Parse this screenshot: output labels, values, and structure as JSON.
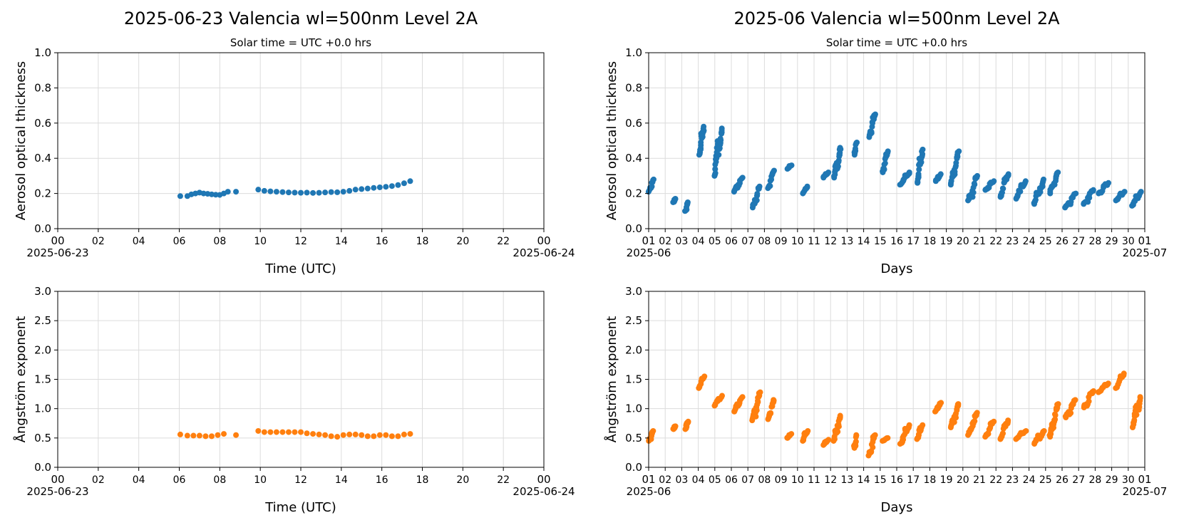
{
  "colors": {
    "aot": "#1f77b4",
    "angstrom": "#ff7f0e",
    "grid": "#dcdcdc"
  },
  "titles": {
    "left": "2025-06-23  Valencia  wl=500nm  Level 2A",
    "right": "2025-06  Valencia  wl=500nm  Level 2A"
  },
  "chart_data": [
    {
      "id": "daily-aot",
      "type": "scatter",
      "title": "2025-06-23  Valencia  wl=500nm  Level 2A",
      "subtitle": "Solar time = UTC +0.0 hrs",
      "ylabel": "Aerosol optical thickness",
      "xlabel": "Time (UTC)",
      "xlim": [
        "2025-06-23 00:00",
        "2025-06-24 00:00"
      ],
      "ylim": [
        0,
        1.0
      ],
      "yticks": [
        "0.0",
        "0.2",
        "0.4",
        "0.6",
        "0.8",
        "1.0"
      ],
      "xticks": [
        "00",
        "02",
        "04",
        "06",
        "08",
        "10",
        "12",
        "14",
        "16",
        "18",
        "20",
        "22",
        "00"
      ],
      "xdate_labels": [
        "2025-06-23",
        "2025-06-24"
      ],
      "grid": true,
      "series": [
        {
          "x_hours": [
            6.05,
            6.4,
            6.6,
            6.8,
            7.0,
            7.2,
            7.4,
            7.6,
            7.8,
            8.0,
            8.2,
            8.4,
            8.8,
            9.9,
            10.2,
            10.5,
            10.8,
            11.1,
            11.4,
            11.7,
            12.0,
            12.3,
            12.6,
            12.9,
            13.2,
            13.5,
            13.8,
            14.1,
            14.4,
            14.7,
            15.0,
            15.3,
            15.6,
            15.9,
            16.2,
            16.5,
            16.8,
            17.1,
            17.4
          ],
          "y": [
            0.185,
            0.185,
            0.195,
            0.2,
            0.205,
            0.2,
            0.198,
            0.195,
            0.193,
            0.192,
            0.2,
            0.21,
            0.21,
            0.222,
            0.215,
            0.212,
            0.21,
            0.208,
            0.206,
            0.205,
            0.204,
            0.205,
            0.203,
            0.204,
            0.206,
            0.208,
            0.207,
            0.21,
            0.215,
            0.222,
            0.225,
            0.228,
            0.232,
            0.235,
            0.238,
            0.242,
            0.248,
            0.258,
            0.27
          ]
        }
      ]
    },
    {
      "id": "daily-angstrom",
      "type": "scatter",
      "ylabel": "Ångström exponent",
      "xlabel": "Time (UTC)",
      "xlim": [
        "2025-06-23 00:00",
        "2025-06-24 00:00"
      ],
      "ylim": [
        0,
        3.0
      ],
      "yticks": [
        "0.0",
        "0.5",
        "1.0",
        "1.5",
        "2.0",
        "2.5",
        "3.0"
      ],
      "xticks": [
        "00",
        "02",
        "04",
        "06",
        "08",
        "10",
        "12",
        "14",
        "16",
        "18",
        "20",
        "22",
        "00"
      ],
      "xdate_labels": [
        "2025-06-23",
        "2025-06-24"
      ],
      "grid": true,
      "series": [
        {
          "x_hours": [
            6.05,
            6.4,
            6.7,
            7.0,
            7.3,
            7.6,
            7.9,
            8.2,
            8.8,
            9.9,
            10.2,
            10.5,
            10.8,
            11.1,
            11.4,
            11.7,
            12.0,
            12.3,
            12.6,
            12.9,
            13.2,
            13.5,
            13.8,
            14.1,
            14.4,
            14.7,
            15.0,
            15.3,
            15.6,
            15.9,
            16.2,
            16.5,
            16.8,
            17.1,
            17.4
          ],
          "y": [
            0.56,
            0.54,
            0.54,
            0.54,
            0.53,
            0.53,
            0.55,
            0.57,
            0.55,
            0.62,
            0.6,
            0.6,
            0.6,
            0.6,
            0.6,
            0.6,
            0.6,
            0.58,
            0.57,
            0.56,
            0.55,
            0.53,
            0.52,
            0.55,
            0.56,
            0.56,
            0.55,
            0.53,
            0.53,
            0.55,
            0.55,
            0.53,
            0.53,
            0.56,
            0.57
          ]
        }
      ]
    },
    {
      "id": "monthly-aot",
      "type": "scatter",
      "title": "2025-06  Valencia  wl=500nm  Level 2A",
      "subtitle": "Solar time = UTC +0.0 hrs",
      "ylabel": "Aerosol optical thickness",
      "xlabel": "Days",
      "xlim": [
        "2025-06-01",
        "2025-07-01"
      ],
      "ylim": [
        0,
        1.0
      ],
      "yticks": [
        "0.0",
        "0.2",
        "0.4",
        "0.6",
        "0.8",
        "1.0"
      ],
      "xticks": [
        "01",
        "02",
        "03",
        "04",
        "05",
        "06",
        "07",
        "08",
        "09",
        "10",
        "11",
        "12",
        "13",
        "14",
        "15",
        "16",
        "17",
        "18",
        "19",
        "20",
        "21",
        "22",
        "23",
        "24",
        "25",
        "26",
        "27",
        "28",
        "29",
        "30",
        "01"
      ],
      "xdate_labels": [
        "2025-06",
        "2025-07"
      ],
      "grid": true,
      "series": [
        {
          "clusters": [
            {
              "day": 1.15,
              "width": 0.25,
              "low": 0.21,
              "high": 0.28
            },
            {
              "day": 2.55,
              "width": 0.1,
              "low": 0.15,
              "high": 0.17
            },
            {
              "day": 3.3,
              "width": 0.15,
              "low": 0.1,
              "high": 0.15
            },
            {
              "day": 4.2,
              "width": 0.3,
              "low": 0.42,
              "high": 0.58
            },
            {
              "day": 5.2,
              "width": 0.45,
              "low": 0.3,
              "high": 0.57
            },
            {
              "day": 6.4,
              "width": 0.5,
              "low": 0.21,
              "high": 0.29
            },
            {
              "day": 7.5,
              "width": 0.45,
              "low": 0.12,
              "high": 0.24
            },
            {
              "day": 8.4,
              "width": 0.35,
              "low": 0.23,
              "high": 0.33
            },
            {
              "day": 9.5,
              "width": 0.25,
              "low": 0.34,
              "high": 0.36
            },
            {
              "day": 10.45,
              "width": 0.3,
              "low": 0.2,
              "high": 0.24
            },
            {
              "day": 11.7,
              "width": 0.3,
              "low": 0.29,
              "high": 0.32
            },
            {
              "day": 12.4,
              "width": 0.4,
              "low": 0.29,
              "high": 0.46
            },
            {
              "day": 13.5,
              "width": 0.15,
              "low": 0.42,
              "high": 0.49
            },
            {
              "day": 14.5,
              "width": 0.35,
              "low": 0.52,
              "high": 0.65
            },
            {
              "day": 15.3,
              "width": 0.3,
              "low": 0.32,
              "high": 0.44
            },
            {
              "day": 16.5,
              "width": 0.55,
              "low": 0.25,
              "high": 0.32
            },
            {
              "day": 17.4,
              "width": 0.3,
              "low": 0.26,
              "high": 0.45
            },
            {
              "day": 18.5,
              "width": 0.3,
              "low": 0.27,
              "high": 0.31
            },
            {
              "day": 19.5,
              "width": 0.5,
              "low": 0.25,
              "high": 0.44
            },
            {
              "day": 20.6,
              "width": 0.55,
              "low": 0.16,
              "high": 0.3
            },
            {
              "day": 21.6,
              "width": 0.5,
              "low": 0.22,
              "high": 0.27
            },
            {
              "day": 22.5,
              "width": 0.5,
              "low": 0.18,
              "high": 0.31
            },
            {
              "day": 23.5,
              "width": 0.6,
              "low": 0.17,
              "high": 0.27
            },
            {
              "day": 24.6,
              "width": 0.6,
              "low": 0.14,
              "high": 0.28
            },
            {
              "day": 25.5,
              "width": 0.5,
              "low": 0.2,
              "high": 0.32
            },
            {
              "day": 26.5,
              "width": 0.6,
              "low": 0.12,
              "high": 0.2
            },
            {
              "day": 27.6,
              "width": 0.6,
              "low": 0.14,
              "high": 0.22
            },
            {
              "day": 28.5,
              "width": 0.6,
              "low": 0.2,
              "high": 0.26
            },
            {
              "day": 29.5,
              "width": 0.5,
              "low": 0.16,
              "high": 0.21
            },
            {
              "day": 30.5,
              "width": 0.5,
              "low": 0.13,
              "high": 0.21
            }
          ]
        }
      ]
    },
    {
      "id": "monthly-angstrom",
      "type": "scatter",
      "ylabel": "Ångström exponent",
      "xlabel": "Days",
      "xlim": [
        "2025-06-01",
        "2025-07-01"
      ],
      "ylim": [
        0,
        3.0
      ],
      "yticks": [
        "0.0",
        "0.5",
        "1.0",
        "1.5",
        "2.0",
        "2.5",
        "3.0"
      ],
      "xticks": [
        "01",
        "02",
        "03",
        "04",
        "05",
        "06",
        "07",
        "08",
        "09",
        "10",
        "11",
        "12",
        "13",
        "14",
        "15",
        "16",
        "17",
        "18",
        "19",
        "20",
        "21",
        "22",
        "23",
        "24",
        "25",
        "26",
        "27",
        "28",
        "29",
        "30",
        "01"
      ],
      "xdate_labels": [
        "2025-06",
        "2025-07"
      ],
      "grid": true,
      "series": [
        {
          "clusters": [
            {
              "day": 1.15,
              "width": 0.25,
              "low": 0.45,
              "high": 0.62
            },
            {
              "day": 2.55,
              "width": 0.1,
              "low": 0.65,
              "high": 0.7
            },
            {
              "day": 3.3,
              "width": 0.15,
              "low": 0.65,
              "high": 0.78
            },
            {
              "day": 4.2,
              "width": 0.35,
              "low": 1.35,
              "high": 1.55
            },
            {
              "day": 5.2,
              "width": 0.45,
              "low": 1.05,
              "high": 1.22
            },
            {
              "day": 6.4,
              "width": 0.5,
              "low": 0.95,
              "high": 1.2
            },
            {
              "day": 7.5,
              "width": 0.45,
              "low": 0.8,
              "high": 1.28
            },
            {
              "day": 8.4,
              "width": 0.35,
              "low": 0.82,
              "high": 1.15
            },
            {
              "day": 9.5,
              "width": 0.25,
              "low": 0.5,
              "high": 0.57
            },
            {
              "day": 10.45,
              "width": 0.3,
              "low": 0.45,
              "high": 0.62
            },
            {
              "day": 11.7,
              "width": 0.3,
              "low": 0.38,
              "high": 0.47
            },
            {
              "day": 12.4,
              "width": 0.4,
              "low": 0.45,
              "high": 0.88
            },
            {
              "day": 13.5,
              "width": 0.15,
              "low": 0.33,
              "high": 0.55
            },
            {
              "day": 14.5,
              "width": 0.35,
              "low": 0.2,
              "high": 0.55
            },
            {
              "day": 15.3,
              "width": 0.3,
              "low": 0.45,
              "high": 0.5
            },
            {
              "day": 16.5,
              "width": 0.55,
              "low": 0.4,
              "high": 0.72
            },
            {
              "day": 17.4,
              "width": 0.3,
              "low": 0.48,
              "high": 0.72
            },
            {
              "day": 18.5,
              "width": 0.3,
              "low": 0.95,
              "high": 1.1
            },
            {
              "day": 19.5,
              "width": 0.5,
              "low": 0.68,
              "high": 1.08
            },
            {
              "day": 20.6,
              "width": 0.55,
              "low": 0.55,
              "high": 0.93
            },
            {
              "day": 21.6,
              "width": 0.5,
              "low": 0.52,
              "high": 0.78
            },
            {
              "day": 22.5,
              "width": 0.5,
              "low": 0.48,
              "high": 0.8
            },
            {
              "day": 23.5,
              "width": 0.6,
              "low": 0.48,
              "high": 0.62
            },
            {
              "day": 24.6,
              "width": 0.6,
              "low": 0.4,
              "high": 0.62
            },
            {
              "day": 25.5,
              "width": 0.5,
              "low": 0.52,
              "high": 1.08
            },
            {
              "day": 26.5,
              "width": 0.6,
              "low": 0.85,
              "high": 1.15
            },
            {
              "day": 27.6,
              "width": 0.6,
              "low": 1.02,
              "high": 1.3
            },
            {
              "day": 28.5,
              "width": 0.6,
              "low": 1.28,
              "high": 1.43
            },
            {
              "day": 29.5,
              "width": 0.5,
              "low": 1.35,
              "high": 1.6
            },
            {
              "day": 30.5,
              "width": 0.5,
              "low": 0.68,
              "high": 1.2
            }
          ]
        }
      ]
    }
  ]
}
